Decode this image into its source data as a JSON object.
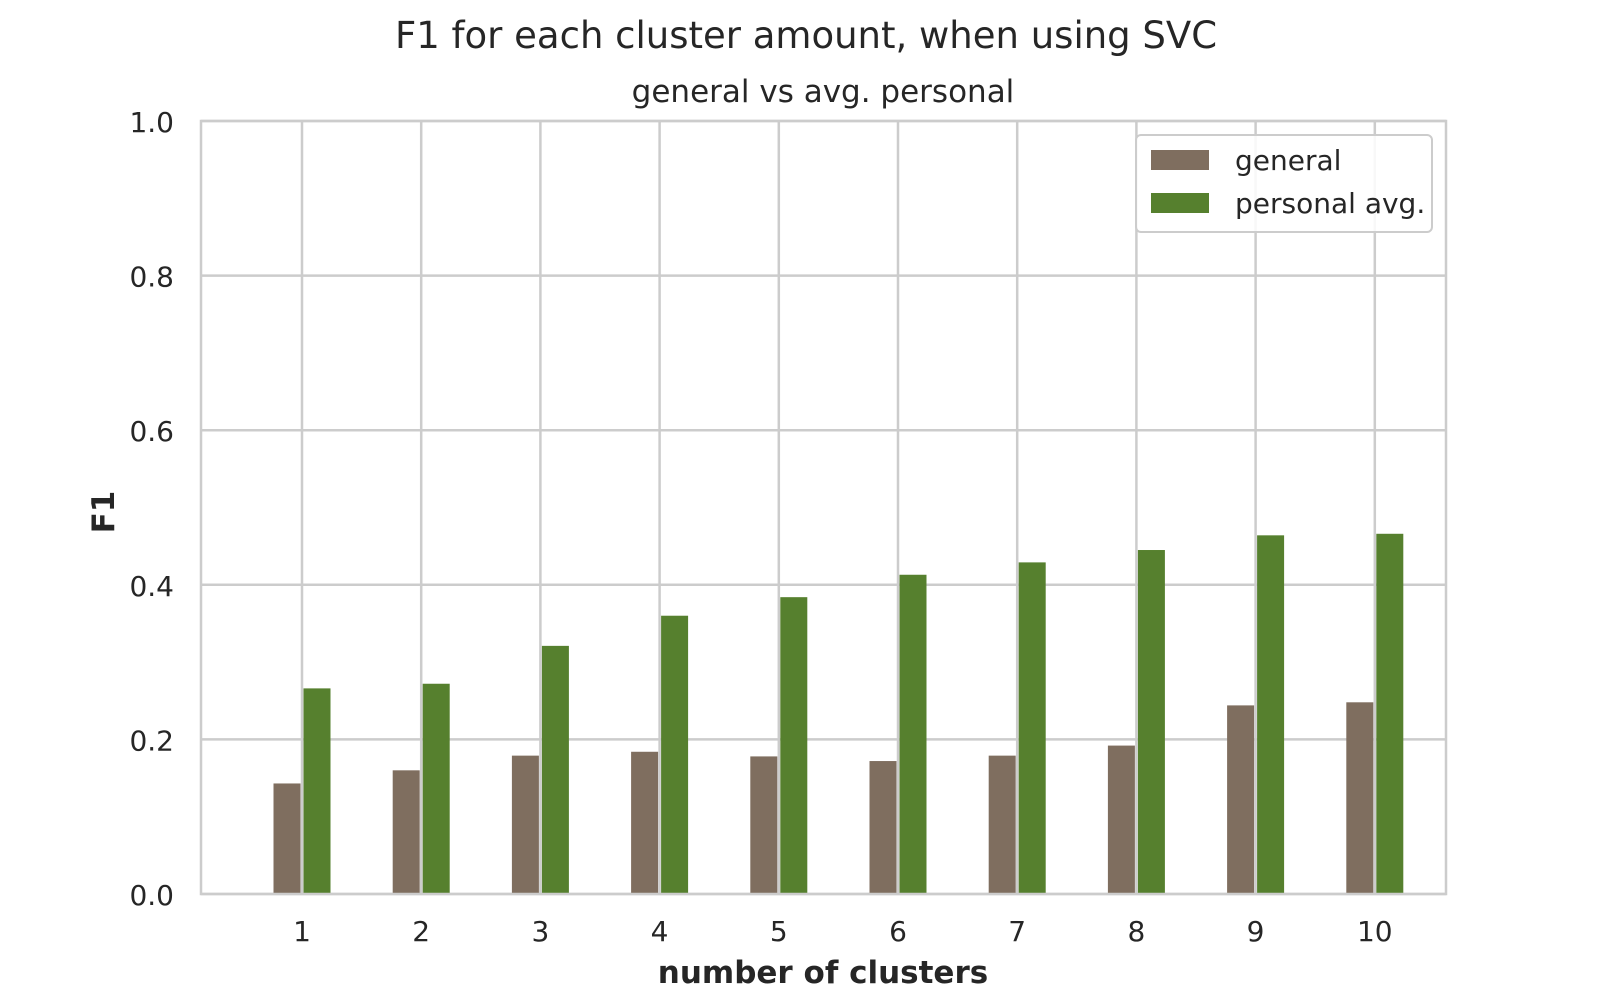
{
  "chart_data": {
    "type": "bar",
    "title": "F1 for each cluster amount, when using SVC",
    "subtitle": "general vs avg. personal",
    "xlabel": "number of clusters",
    "ylabel": "F1",
    "categories": [
      "1",
      "2",
      "3",
      "4",
      "5",
      "6",
      "7",
      "8",
      "9",
      "10"
    ],
    "ylim": [
      0,
      1.0
    ],
    "yticks": [
      "0.0",
      "0.2",
      "0.4",
      "0.6",
      "0.8",
      "1.0"
    ],
    "grid": true,
    "legend_position": "top-right",
    "series": [
      {
        "name": "general",
        "color": "#7f6e5f",
        "values": [
          0.143,
          0.16,
          0.179,
          0.184,
          0.178,
          0.172,
          0.179,
          0.192,
          0.244,
          0.248
        ]
      },
      {
        "name": "personal avg.",
        "color": "#56802e",
        "values": [
          0.266,
          0.272,
          0.321,
          0.36,
          0.384,
          0.413,
          0.429,
          0.445,
          0.464,
          0.466
        ]
      }
    ]
  }
}
